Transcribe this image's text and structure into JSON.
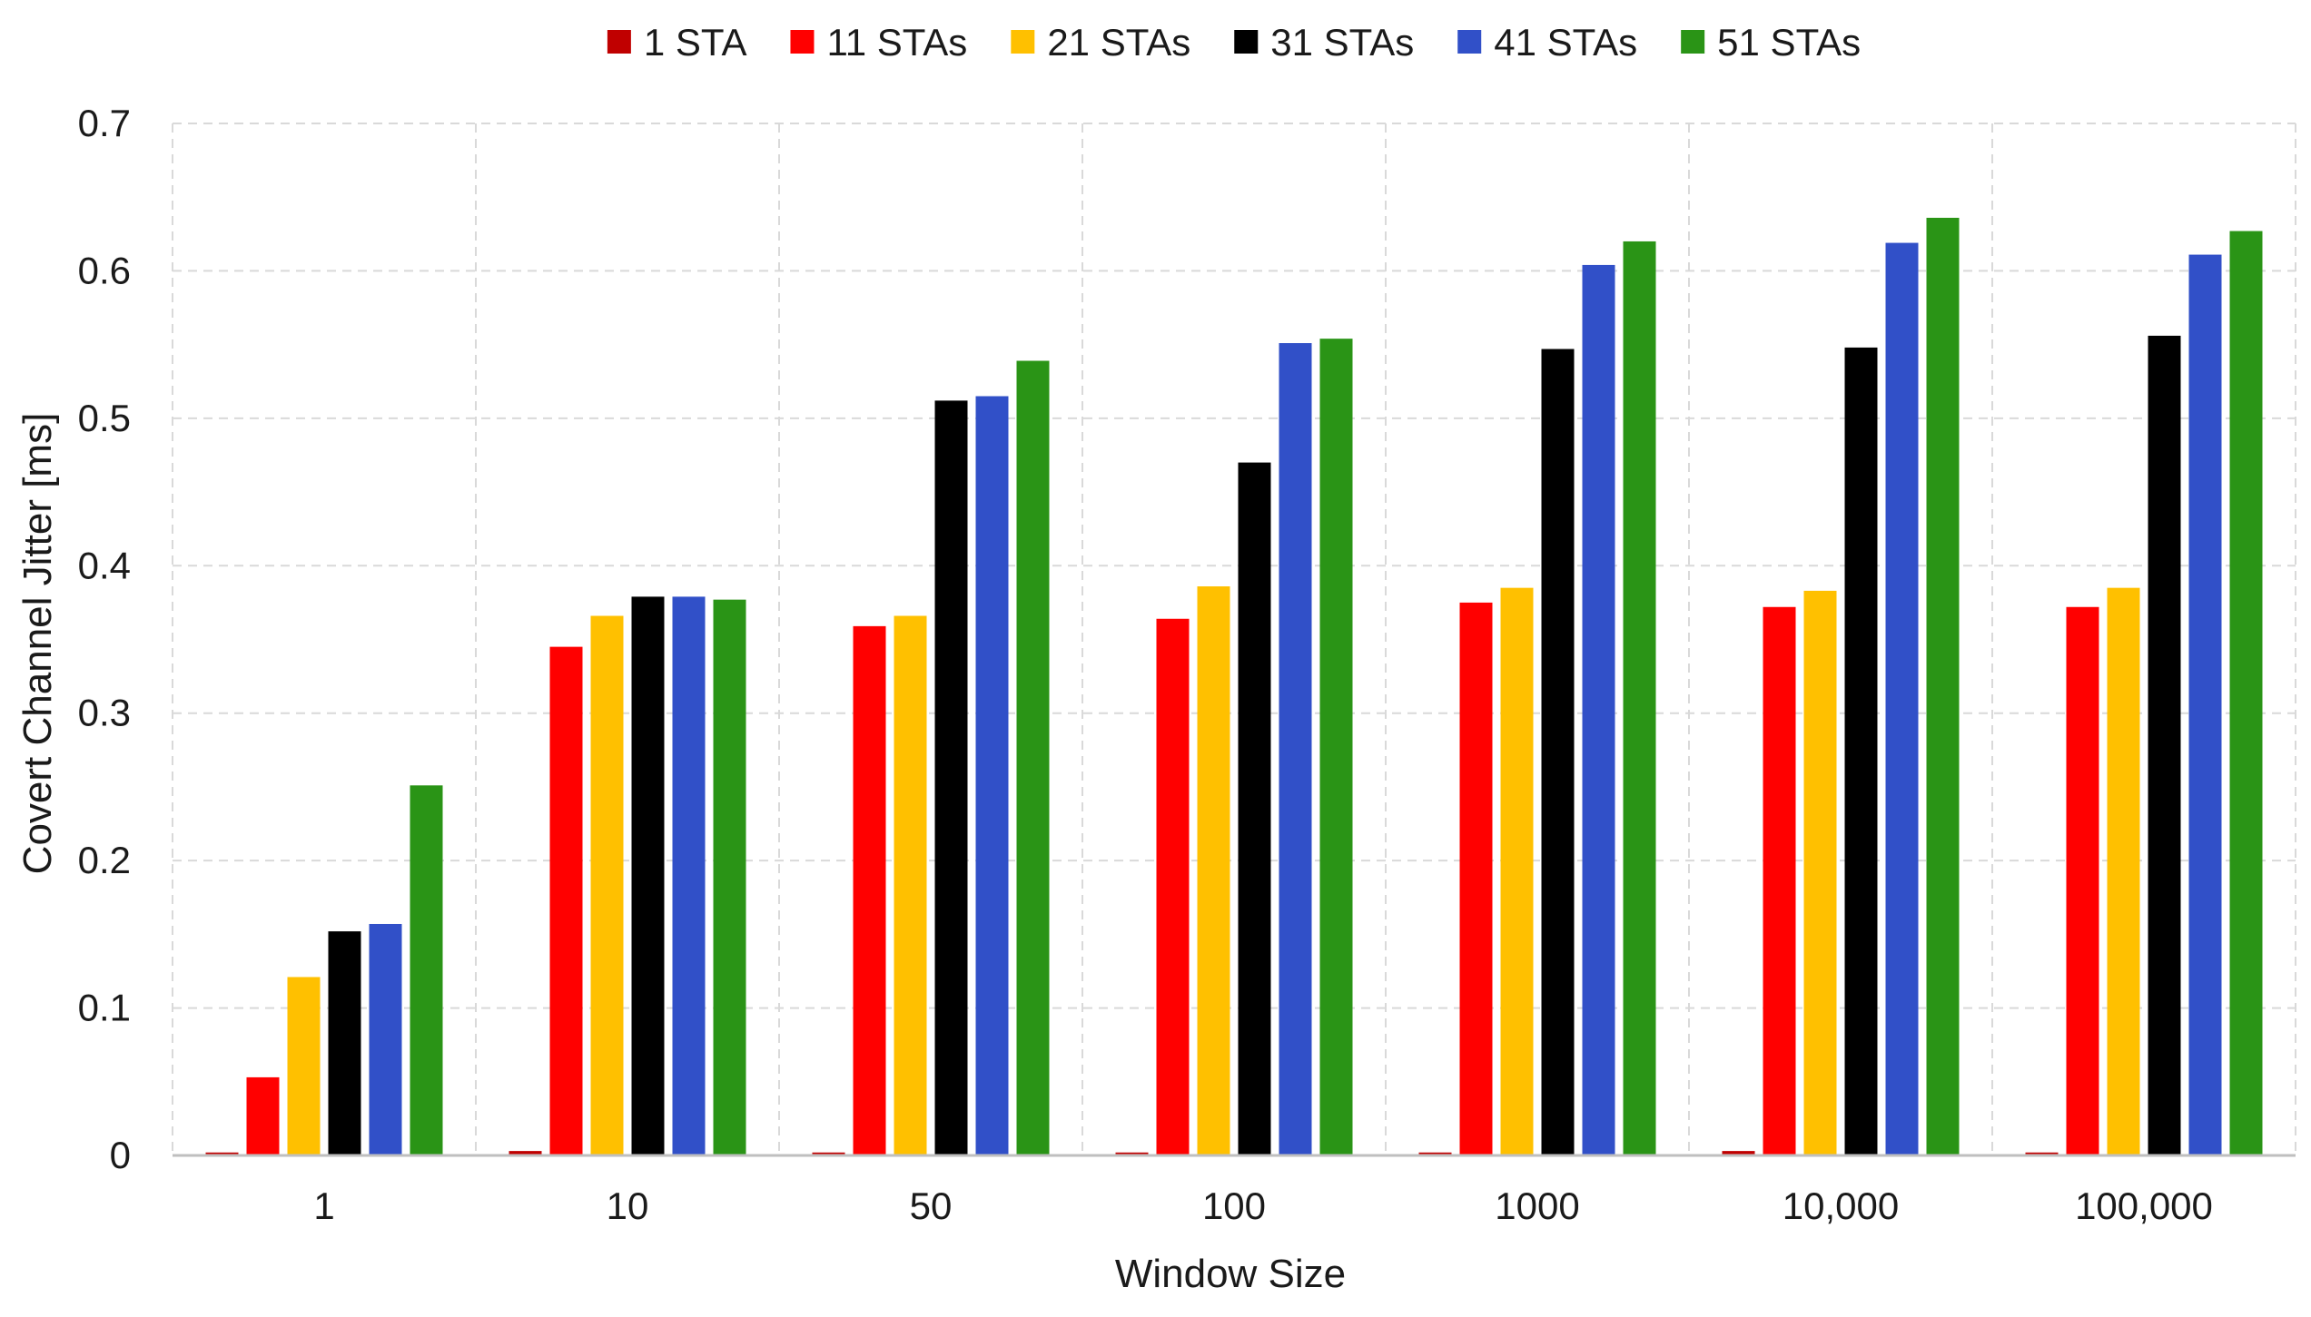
{
  "chart_data": {
    "type": "bar",
    "title": "",
    "xlabel": "Window Size",
    "ylabel": "Covert Channel Jitter [ms]",
    "ylim": [
      0,
      0.7
    ],
    "yticks": [
      0,
      0.1,
      0.2,
      0.3,
      0.4,
      0.5,
      0.6,
      0.7
    ],
    "ytick_labels": [
      "0",
      "0.1",
      "0.2",
      "0.3",
      "0.4",
      "0.5",
      "0.6",
      "0.7"
    ],
    "grid": true,
    "legend_position": "top-center",
    "categories": [
      "1",
      "10",
      "50",
      "100",
      "1000",
      "10,000",
      "100,000"
    ],
    "series": [
      {
        "name": "1 STA",
        "color": "#c00000",
        "values": [
          0.002,
          0.003,
          0.002,
          0.002,
          0.002,
          0.003,
          0.002
        ]
      },
      {
        "name": "11 STAs",
        "color": "#ff0000",
        "values": [
          0.053,
          0.345,
          0.359,
          0.364,
          0.375,
          0.372,
          0.372
        ]
      },
      {
        "name": "21 STAs",
        "color": "#ffc000",
        "values": [
          0.121,
          0.366,
          0.366,
          0.386,
          0.385,
          0.383,
          0.385
        ]
      },
      {
        "name": "31 STAs",
        "color": "#000000",
        "values": [
          0.152,
          0.379,
          0.512,
          0.47,
          0.547,
          0.548,
          0.556
        ]
      },
      {
        "name": "41 STAs",
        "color": "#3150c8",
        "values": [
          0.157,
          0.379,
          0.515,
          0.551,
          0.604,
          0.619,
          0.611
        ]
      },
      {
        "name": "51 STAs",
        "color": "#2a9416",
        "values": [
          0.251,
          0.377,
          0.539,
          0.554,
          0.62,
          0.636,
          0.627
        ]
      }
    ]
  }
}
